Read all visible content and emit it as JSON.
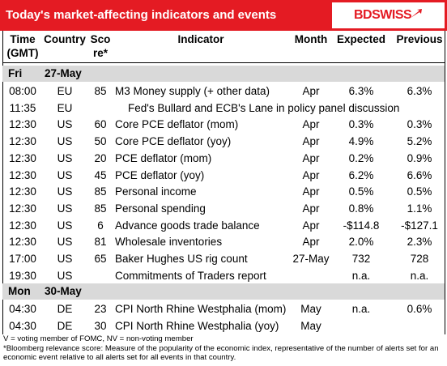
{
  "header": {
    "title": "Today's market-affecting indicators and events",
    "logo": "BDSWISS"
  },
  "columns": {
    "time": [
      "Time",
      "(GMT)"
    ],
    "country": "Country",
    "score": [
      "Sco",
      "re*"
    ],
    "indicator": "Indicator",
    "month": "Month",
    "expected": "Expected",
    "previous": "Previous"
  },
  "sections": [
    {
      "day": "Fri",
      "date": "27-May",
      "rows": [
        {
          "time": "08:00",
          "country": "EU",
          "score": 85,
          "indicator": "M3 Money supply (+ other data)",
          "month": "Apr",
          "expected": "6.3%",
          "previous": "6.3%"
        },
        {
          "time": "11:35",
          "country": "EU",
          "indicator": "Fed's Bullard and ECB's Lane in policy panel discussion"
        },
        {
          "time": "12:30",
          "country": "US",
          "score": 60,
          "indicator": "Core PCE deflator (mom)",
          "month": "Apr",
          "expected": "0.3%",
          "previous": "0.3%"
        },
        {
          "time": "12:30",
          "country": "US",
          "score": 50,
          "indicator": "Core PCE deflator (yoy)",
          "month": "Apr",
          "expected": "4.9%",
          "previous": "5.2%"
        },
        {
          "time": "12:30",
          "country": "US",
          "score": 20,
          "indicator": "PCE deflator (mom)",
          "month": "Apr",
          "expected": "0.2%",
          "previous": "0.9%"
        },
        {
          "time": "12:30",
          "country": "US",
          "score": 45,
          "indicator": "PCE deflator (yoy)",
          "month": "Apr",
          "expected": "6.2%",
          "previous": "6.6%"
        },
        {
          "time": "12:30",
          "country": "US",
          "score": 85,
          "indicator": "Personal income",
          "month": "Apr",
          "expected": "0.5%",
          "previous": "0.5%"
        },
        {
          "time": "12:30",
          "country": "US",
          "score": 85,
          "indicator": "Personal spending",
          "month": "Apr",
          "expected": "0.8%",
          "previous": "1.1%"
        },
        {
          "time": "12:30",
          "country": "US",
          "score": 6,
          "indicator": "Advance goods trade balance",
          "month": "Apr",
          "expected": "-$114.8",
          "previous": "-$127.1"
        },
        {
          "time": "12:30",
          "country": "US",
          "score": 81,
          "indicator": "Wholesale inventories",
          "month": "Apr",
          "expected": "2.0%",
          "previous": "2.3%"
        },
        {
          "time": "17:00",
          "country": "US",
          "score": 65,
          "indicator": "Baker Hughes US rig count",
          "month": "27-May",
          "expected": "732",
          "previous": "728"
        },
        {
          "time": "19:30",
          "country": "US",
          "indicator": "Commitments of Traders  report",
          "expected": "n.a.",
          "previous": "n.a."
        }
      ]
    },
    {
      "day": "Mon",
      "date": "30-May",
      "rows": [
        {
          "time": "04:30",
          "country": "DE",
          "score": 23,
          "indicator": "CPI North Rhine Westphalia (mom)",
          "month": "May",
          "expected": "n.a.",
          "previous": "0.6%"
        },
        {
          "time": "04:30",
          "country": "DE",
          "score": 30,
          "indicator": "CPI North Rhine Westphalia (yoy)",
          "month": "May"
        }
      ]
    }
  ],
  "footnotes": [
    "V = voting member of FOMC, NV = non-voting member",
    "*Bloomberg relevance score:  Measure of the popularity of the economic index, representative of the number of alerts set for an economic event relative to all alerts set for all events in that country."
  ]
}
